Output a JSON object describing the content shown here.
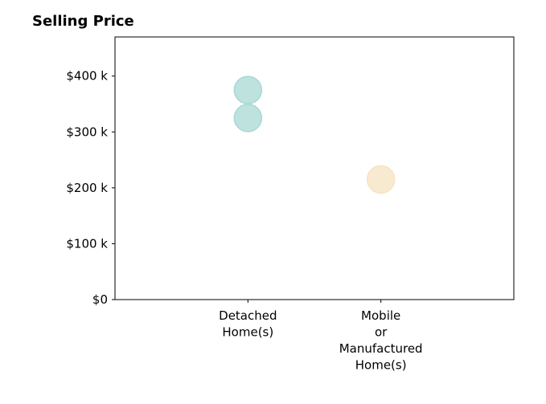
{
  "chart_data": {
    "type": "scatter",
    "title": "Selling Price",
    "xlabel": "",
    "ylabel": "",
    "categories": [
      [
        "Detached",
        "Home(s)"
      ],
      [
        "Mobile",
        "or",
        "Manufactured",
        "Home(s)"
      ]
    ],
    "y_ticks": [
      {
        "value": 0,
        "label": "$0"
      },
      {
        "value": 100000,
        "label": "$100 k"
      },
      {
        "value": 200000,
        "label": "$200 k"
      },
      {
        "value": 300000,
        "label": "$300 k"
      },
      {
        "value": 400000,
        "label": "$400 k"
      }
    ],
    "ylim": [
      0,
      470000
    ],
    "xlim": [
      -1,
      2
    ],
    "points": [
      {
        "category_index": 0,
        "y": 375000,
        "color": "#a8d8d3"
      },
      {
        "category_index": 0,
        "y": 325000,
        "color": "#a8d8d3"
      },
      {
        "category_index": 1,
        "y": 215000,
        "color": "#f6e3c1"
      }
    ],
    "grid": false,
    "legend": "none"
  }
}
